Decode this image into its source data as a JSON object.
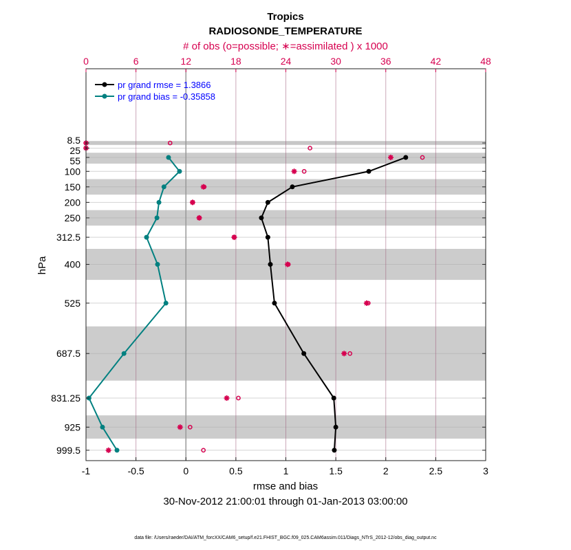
{
  "chart_data": {
    "type": "line",
    "title": "Tropics",
    "subtitle": "RADIOSONDE_TEMPERATURE",
    "xlabel": "rmse and bias",
    "ylabel": "hPa",
    "x2label": "# of obs (o=possible; ∗=assimilated ) x 1000",
    "period": "30-Nov-2012 21:00:01 through 01-Jan-2013 03:00:00",
    "footer": "data file: /Users/raeder/DAI/ATM_forcXX/CAM6_setup/f.e21.FHIST_BGC.f09_025.CAM6assim.011/Diags_NTrS_2012-12/obs_diag_output.nc",
    "xlim": [
      -1,
      3
    ],
    "x2lim": [
      0,
      48
    ],
    "ylim": [
      -231,
      1033
    ],
    "y_reversed": true,
    "xticks": [
      "-1",
      "-0.5",
      "0",
      "0.5",
      "1",
      "1.5",
      "2",
      "2.5",
      "3"
    ],
    "xtick_values": [
      -1,
      -0.5,
      0,
      0.5,
      1,
      1.5,
      2,
      2.5,
      3
    ],
    "x2ticks": [
      "0",
      "6",
      "12",
      "18",
      "24",
      "30",
      "36",
      "42",
      "48"
    ],
    "x2tick_values": [
      0,
      6,
      12,
      18,
      24,
      30,
      36,
      42,
      48
    ],
    "levels": [
      8.5,
      25,
      55,
      100,
      150,
      200,
      250,
      312.5,
      400,
      525,
      687.5,
      831.25,
      925,
      999.5
    ],
    "level_labels": [
      "8.5",
      "25",
      "55",
      "100",
      "150",
      "200",
      "250",
      "312.5",
      "400",
      "525",
      "687.5",
      "831.25",
      "925",
      "999.5"
    ],
    "bands": [
      [
        1.8,
        15
      ],
      [
        40,
        75
      ],
      [
        125,
        175
      ],
      [
        225,
        275
      ],
      [
        350,
        450
      ],
      [
        600,
        775
      ],
      [
        887,
        962
      ]
    ],
    "legend_placement": "top-left",
    "series": [
      {
        "name": "pr grand rmse = 1.3866",
        "color": "#000000",
        "levels": [
          55,
          100,
          150,
          200,
          250,
          312.5,
          400,
          525,
          687.5,
          831.25,
          925,
          999.5
        ],
        "values": [
          2.2,
          1.83,
          1.065,
          0.82,
          0.755,
          0.82,
          0.845,
          0.886,
          1.18,
          1.48,
          1.5,
          1.485
        ]
      },
      {
        "name": "pr grand bias = -0.35858",
        "color": "#008080",
        "levels": [
          55,
          100,
          150,
          200,
          250,
          312.5,
          400,
          525,
          687.5,
          831.25,
          925,
          999.5
        ],
        "values": [
          -0.174,
          -0.064,
          -0.22,
          -0.27,
          -0.29,
          -0.394,
          -0.284,
          -0.2,
          -0.62,
          -0.97,
          -0.835,
          -0.69
        ]
      }
    ],
    "obs_possible": [
      10.1,
      26.9,
      40.4,
      26.2,
      14.2,
      12.8,
      13.6,
      17.8,
      24.3,
      33.9,
      31.7,
      18.3,
      12.5,
      14.1
    ],
    "obs_assimilated": [
      0,
      0,
      36.6,
      25.0,
      14.1,
      12.8,
      13.6,
      17.8,
      24.2,
      33.7,
      31.0,
      16.9,
      11.3,
      2.7
    ],
    "obs_color": "#d6004f",
    "legend_text_color": "#0000ff"
  }
}
